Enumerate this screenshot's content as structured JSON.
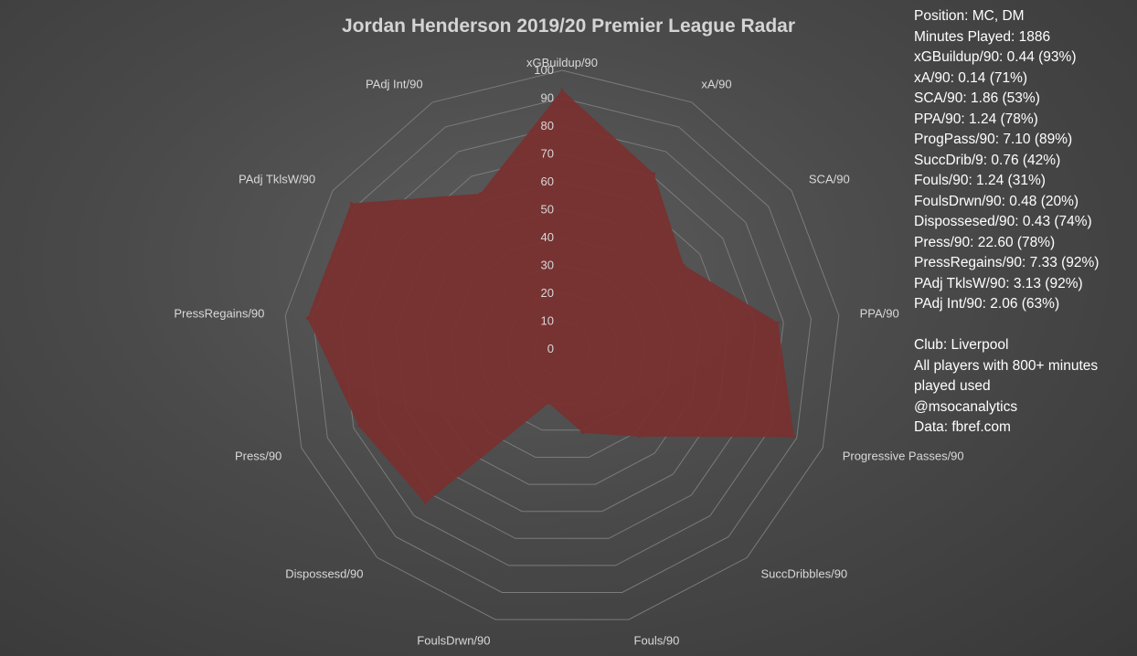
{
  "chart_data": {
    "type": "radar",
    "title": "Jordan Henderson 2019/20 Premier League Radar",
    "axes": [
      "xGBuildup/90",
      "xA/90",
      "SCA/90",
      "PPA/90",
      "Progressive Passes/90",
      "SuccDribbles/90",
      "Fouls/90",
      "FoulsDrwn/90",
      "Dispossesd/90",
      "Press/90",
      "PressRegains/90",
      "PAdj TklsW/90",
      "PAdj Int/90"
    ],
    "ticks": [
      0,
      10,
      20,
      30,
      40,
      50,
      60,
      70,
      80,
      90,
      100
    ],
    "rmax": 100,
    "grid": true,
    "fill_color": "#7a2f2f",
    "series": [
      {
        "values": [
          93,
          71,
          53,
          78,
          89,
          42,
          31,
          20,
          74,
          78,
          92,
          92,
          63
        ]
      }
    ]
  },
  "info": {
    "stats": [
      "Position: MC, DM",
      "Minutes Played: 1886",
      "xGBuildup/90: 0.44 (93%)",
      "xA/90: 0.14 (71%)",
      "SCA/90: 1.86 (53%)",
      "PPA/90: 1.24 (78%)",
      "ProgPass/90: 7.10 (89%)",
      "SuccDrib/9: 0.76 (42%)",
      "Fouls/90: 1.24 (31%)",
      "FoulsDrwn/90: 0.48 (20%)",
      "Dispossesed/90: 0.43 (74%)",
      "Press/90: 22.60 (78%)",
      "PressRegains/90: 7.33 (92%)",
      "PAdj TklsW/90: 3.13 (92%)",
      "PAdj Int/90: 2.06 (63%)"
    ],
    "club": "Club: Liverpool",
    "players_note": "All players with 800+ minutes played used",
    "handle": "@msocanalytics",
    "source": "Data: fbref.com"
  }
}
